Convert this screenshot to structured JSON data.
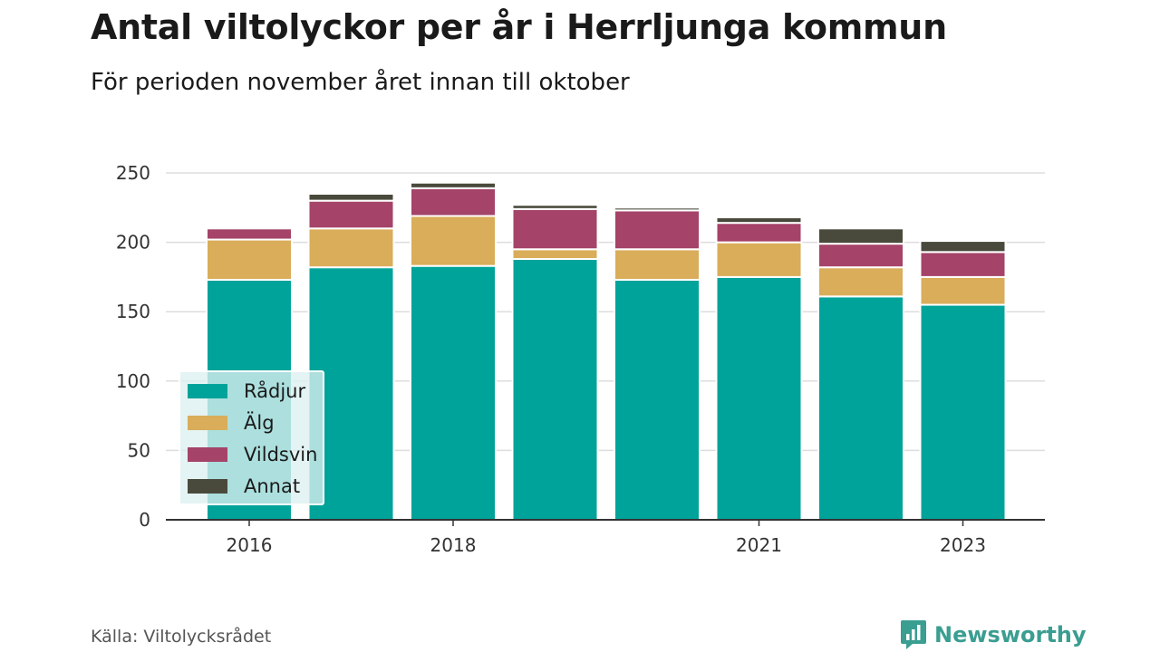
{
  "header": {
    "title": "Antal viltolyckor per år i Herrljunga kommun",
    "subtitle": "För perioden november året innan till oktober"
  },
  "footer": {
    "source": "Källa: Viltolycksrådet",
    "brand": "Newsworthy"
  },
  "colors": {
    "radjur": "#00a39a",
    "alg": "#d9ad5a",
    "vildsvin": "#a54368",
    "annat": "#4a4a3c",
    "brand": "#3a9e91"
  },
  "chart_data": {
    "type": "bar",
    "stacked": true,
    "title": "Antal viltolyckor per år i Herrljunga kommun",
    "subtitle": "För perioden november året innan till oktober",
    "categories": [
      "2016",
      "2017",
      "2018",
      "2019",
      "2020",
      "2021",
      "2022",
      "2023"
    ],
    "x_tick_labels": [
      "2016",
      "2018",
      "2021",
      "2023"
    ],
    "series": [
      {
        "name": "Rådjur",
        "color": "#00a39a",
        "values": [
          173,
          182,
          183,
          188,
          173,
          175,
          161,
          155
        ]
      },
      {
        "name": "Älg",
        "color": "#d9ad5a",
        "values": [
          29,
          28,
          36,
          7,
          22,
          25,
          21,
          20
        ]
      },
      {
        "name": "Vildsvin",
        "color": "#a54368",
        "values": [
          8,
          20,
          20,
          29,
          28,
          14,
          17,
          18
        ]
      },
      {
        "name": "Annat",
        "color": "#4a4a3c",
        "values": [
          0,
          5,
          4,
          3,
          2,
          4,
          11,
          8
        ]
      }
    ],
    "ylim": [
      0,
      250
    ],
    "yticks": [
      0,
      50,
      100,
      150,
      200,
      250
    ],
    "grid": true,
    "legend_position": "bottom-left"
  }
}
